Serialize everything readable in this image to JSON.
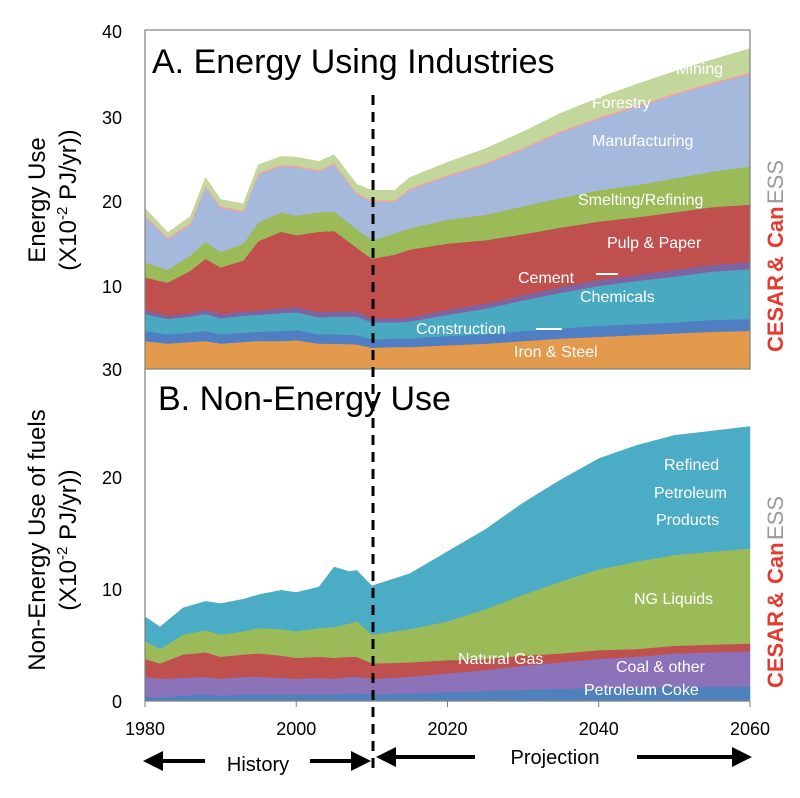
{
  "chart_data": [
    {
      "type": "area",
      "stacked": true,
      "title": "A. Energy Using Industries",
      "ylabel_line1": "Energy Use",
      "ylabel_line2": "(X10-2 PJ/yr))",
      "ylim": [
        0,
        40
      ],
      "yticks": [
        "40",
        "30",
        "20",
        "10"
      ],
      "x": [
        1980,
        1983,
        1986,
        1988,
        1990,
        1993,
        1995,
        1998,
        2000,
        2003,
        2005,
        2008,
        2010,
        2013,
        2015,
        2020,
        2025,
        2030,
        2035,
        2040,
        2045,
        2050,
        2055,
        2060
      ],
      "series": [
        {
          "name": "Iron & Steel",
          "color": "#E49A4C",
          "values": [
            3.3,
            3.0,
            3.2,
            3.3,
            3.0,
            3.2,
            3.3,
            3.3,
            3.4,
            3.0,
            3.0,
            2.9,
            2.5,
            2.6,
            2.6,
            2.8,
            3.0,
            3.3,
            3.6,
            3.8,
            4.0,
            4.2,
            4.4,
            4.5
          ]
        },
        {
          "name": "Construction",
          "color": "#4F7EC2",
          "values": [
            1.2,
            1.1,
            1.1,
            1.2,
            1.1,
            1.1,
            1.1,
            1.2,
            1.2,
            1.1,
            1.1,
            1.1,
            1.0,
            1.0,
            1.0,
            1.1,
            1.1,
            1.2,
            1.2,
            1.3,
            1.3,
            1.3,
            1.4,
            1.4
          ]
        },
        {
          "name": "Chemicals",
          "color": "#49A9C1",
          "values": [
            2.0,
            1.8,
            1.9,
            2.0,
            1.9,
            2.0,
            2.0,
            2.1,
            2.1,
            2.0,
            2.1,
            2.2,
            2.0,
            1.9,
            2.0,
            2.5,
            3.0,
            3.6,
            4.2,
            4.7,
            5.1,
            5.4,
            5.7,
            5.9
          ]
        },
        {
          "name": "Cement",
          "color": "#8064A2",
          "values": [
            0.5,
            0.4,
            0.4,
            0.5,
            0.5,
            0.5,
            0.5,
            0.6,
            0.6,
            0.6,
            0.6,
            0.6,
            0.5,
            0.5,
            0.5,
            0.6,
            0.6,
            0.6,
            0.7,
            0.7,
            0.7,
            0.8,
            0.8,
            0.8
          ]
        },
        {
          "name": "Pulp & Paper",
          "color": "#C0504D",
          "values": [
            3.8,
            3.9,
            5.0,
            6.0,
            5.5,
            6.0,
            8.2,
            9.0,
            8.5,
            9.5,
            9.5,
            7.5,
            7.0,
            7.5,
            8.0,
            7.8,
            7.5,
            7.2,
            7.0,
            6.9,
            6.8,
            6.8,
            6.8,
            6.8
          ]
        },
        {
          "name": "Smelting/Refining",
          "color": "#9BBB59",
          "values": [
            1.8,
            1.5,
            1.8,
            2.0,
            1.8,
            2.0,
            2.2,
            2.3,
            2.3,
            2.3,
            2.3,
            2.2,
            2.2,
            2.5,
            2.5,
            2.8,
            3.0,
            3.3,
            3.5,
            3.7,
            3.8,
            4.0,
            4.2,
            4.5
          ]
        },
        {
          "name": "Manufacturing",
          "color": "#A5B9DC",
          "values": [
            5.4,
            3.6,
            3.6,
            6.4,
            5.2,
            3.7,
            5.6,
            5.4,
            5.7,
            4.8,
            5.5,
            4.1,
            4.5,
            3.7,
            4.5,
            5.1,
            5.9,
            6.7,
            7.7,
            8.4,
            9.2,
            9.8,
            10.3,
            10.9
          ]
        },
        {
          "name": "Forestry",
          "color": "#F2A2A0",
          "values": [
            0.2,
            0.2,
            0.2,
            0.2,
            0.2,
            0.2,
            0.2,
            0.2,
            0.2,
            0.2,
            0.2,
            0.2,
            0.2,
            0.2,
            0.2,
            0.2,
            0.2,
            0.2,
            0.2,
            0.2,
            0.2,
            0.2,
            0.2,
            0.2
          ]
        },
        {
          "name": "Mining",
          "color": "#C3D69B",
          "values": [
            0.8,
            0.6,
            0.8,
            1.0,
            0.8,
            0.8,
            1.0,
            1.0,
            1.0,
            1.0,
            1.0,
            1.0,
            1.2,
            1.2,
            1.3,
            1.5,
            1.7,
            1.9,
            2.1,
            2.3,
            2.5,
            2.6,
            2.7,
            2.8
          ]
        }
      ]
    },
    {
      "type": "area",
      "stacked": true,
      "title": "B. Non-Energy Use",
      "ylabel_line1": "Non-Energy Use of fuels",
      "ylabel_line2": "(X10-2 PJ/yr))",
      "ylim": [
        0,
        30
      ],
      "yticks": [
        "30",
        "20",
        "10",
        "0"
      ],
      "x": [
        1980,
        1982,
        1985,
        1988,
        1990,
        1993,
        1995,
        1998,
        2000,
        2003,
        2005,
        2007,
        2008,
        2010,
        2015,
        2020,
        2025,
        2030,
        2035,
        2040,
        2045,
        2050,
        2055,
        2060
      ],
      "series": [
        {
          "name": "Coal & other Petroleum Coke",
          "color": "#4F81BD",
          "values": [
            0.4,
            0.3,
            0.5,
            0.6,
            0.5,
            0.6,
            0.6,
            0.6,
            0.6,
            0.6,
            0.6,
            0.7,
            0.7,
            0.6,
            0.7,
            0.8,
            0.9,
            1.0,
            1.1,
            1.2,
            1.2,
            1.3,
            1.3,
            1.3
          ]
        },
        {
          "name": "Coal & other Petroleum Coke (lavender)",
          "color": "#8C72B8",
          "values": [
            1.8,
            1.7,
            1.6,
            1.6,
            1.5,
            1.6,
            1.6,
            1.5,
            1.4,
            1.5,
            1.4,
            1.5,
            1.5,
            1.4,
            1.5,
            1.7,
            1.9,
            2.2,
            2.4,
            2.6,
            2.8,
            3.0,
            3.1,
            3.2
          ]
        },
        {
          "name": "Natural Gas",
          "color": "#C0504D",
          "values": [
            1.6,
            1.4,
            2.1,
            2.2,
            2.0,
            2.0,
            2.1,
            2.0,
            1.9,
            1.9,
            1.9,
            1.8,
            1.8,
            1.4,
            1.3,
            1.2,
            1.0,
            0.9,
            0.8,
            0.8,
            0.7,
            0.7,
            0.7,
            0.7
          ]
        },
        {
          "name": "NG Liquids",
          "color": "#9BBB59",
          "values": [
            1.6,
            1.3,
            1.8,
            2.0,
            2.0,
            2.1,
            2.3,
            2.4,
            2.4,
            2.6,
            2.8,
            3.0,
            3.2,
            2.6,
            3.0,
            3.5,
            4.5,
            5.5,
            6.5,
            7.3,
            7.9,
            8.2,
            8.4,
            8.6
          ]
        },
        {
          "name": "Refined Petroleum Products",
          "color": "#4BACC6",
          "values": [
            2.2,
            2.0,
            2.4,
            2.6,
            2.8,
            2.9,
            3.0,
            3.5,
            3.5,
            3.7,
            5.4,
            4.7,
            4.6,
            4.4,
            5.0,
            6.3,
            7.2,
            8.3,
            9.2,
            10.0,
            10.5,
            10.8,
            10.9,
            11.0
          ]
        }
      ],
      "segment_lines": [
        {
          "name": "Coal & other Petroleum Coke (upper line)",
          "color": "#A993C8"
        }
      ]
    }
  ],
  "xaxis": {
    "ticks": [
      "1980",
      "2000",
      "2020",
      "2040",
      "2060"
    ],
    "range": [
      1980,
      2060
    ],
    "divider_year": 2010
  },
  "labels": {
    "a": {
      "mining": "Mining",
      "forestry": "Forestry",
      "manufacturing": "Manufacturing",
      "smelting": "Smelting/Refining",
      "pulp": "Pulp & Paper",
      "cement": "Cement",
      "chemicals": "Chemicals",
      "construction": "Construction",
      "iron": "Iron & Steel"
    },
    "b": {
      "refined_1": "Refined",
      "refined_2": "Petroleum",
      "refined_3": "Products",
      "ngl": "NG Liquids",
      "ng": "Natural Gas",
      "coal_1": "Coal & other",
      "coal_2": "Petroleum Coke"
    }
  },
  "brand": {
    "cesar": "CESAR",
    "amp": "&",
    "canessA": "Can",
    "canessB": "ESS"
  },
  "colors": {
    "cesar_red": "#E8392E",
    "ess_gray": "#9A9A9A",
    "axis": "#7F7F7F"
  },
  "history_label": "History",
  "projection_label": "Projection"
}
